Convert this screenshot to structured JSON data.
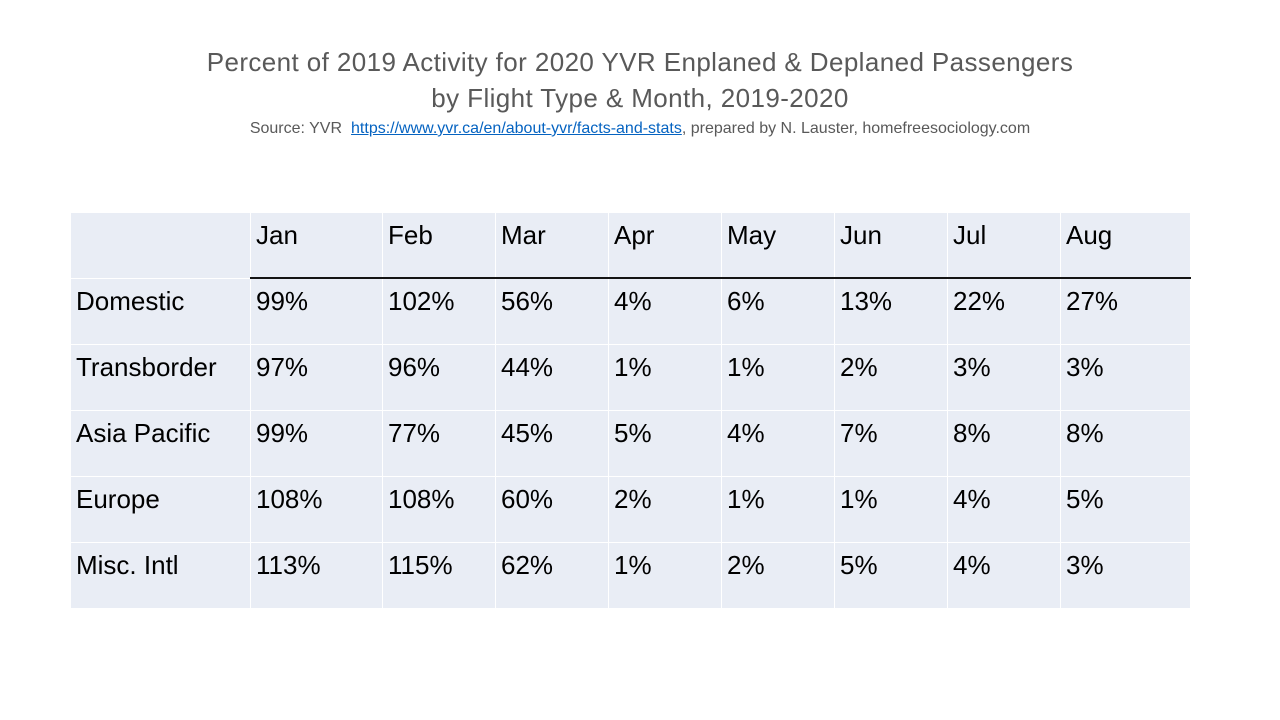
{
  "title": {
    "line1": "Percent of 2019 Activity for 2020 YVR Enplaned & Deplaned Passengers",
    "line2": "by Flight Type & Month, 2019-2020"
  },
  "source": {
    "prefix": "Source: YVR",
    "link": "https://www.yvr.ca/en/about-yvr/facts-and-stats",
    "suffix": ", prepared by N. Lauster, homefreesociology.com"
  },
  "colors": {
    "title_text": "#595959",
    "link": "#0563C1",
    "cell_background": "#e9edf5",
    "cell_separator": "#ffffff",
    "table_text": "#000000",
    "header_rule": "#141414"
  },
  "chart_data": {
    "type": "table",
    "title": "Percent of 2019 Activity for 2020 YVR Enplaned & Deplaned Passengers by Flight Type & Month, 2019-2020",
    "columns": [
      "",
      "Jan",
      "Feb",
      "Mar",
      "Apr",
      "May",
      "Jun",
      "Jul",
      "Aug"
    ],
    "rows": [
      {
        "label": "Domestic",
        "values": [
          "99%",
          "102%",
          "56%",
          "4%",
          "6%",
          "13%",
          "22%",
          "27%"
        ]
      },
      {
        "label": "Transborder",
        "values": [
          "97%",
          "96%",
          "44%",
          "1%",
          "1%",
          "2%",
          "3%",
          "3%"
        ]
      },
      {
        "label": "Asia Pacific",
        "values": [
          "99%",
          "77%",
          "45%",
          "5%",
          "4%",
          "7%",
          "8%",
          "8%"
        ]
      },
      {
        "label": "Europe",
        "values": [
          "108%",
          "108%",
          "60%",
          "2%",
          "1%",
          "1%",
          "4%",
          "5%"
        ]
      },
      {
        "label": "Misc. Intl",
        "values": [
          "113%",
          "115%",
          "62%",
          "1%",
          "2%",
          "5%",
          "4%",
          "3%"
        ]
      }
    ],
    "layout_hints": {
      "values_are_percent_of_2019": true,
      "header_rule_under_month_columns_only": true
    }
  }
}
